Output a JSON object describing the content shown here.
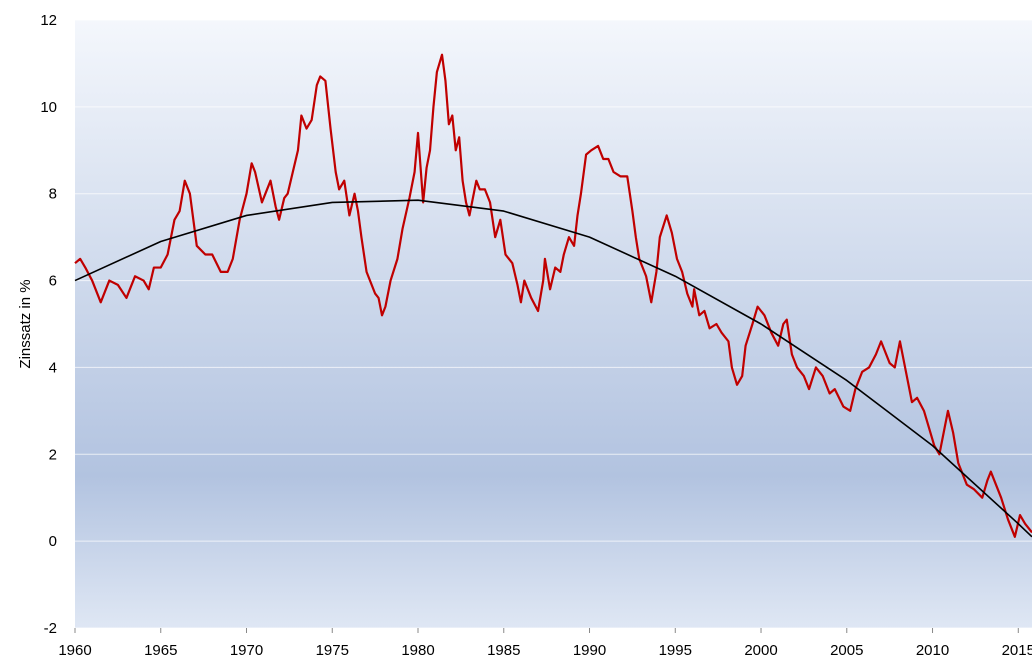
{
  "chart_data": {
    "type": "line",
    "y_label": "Zinssatz in %",
    "xlim": [
      1960,
      2015.8
    ],
    "ylim": [
      -2,
      12
    ],
    "xticks": [
      1960,
      1965,
      1970,
      1975,
      1980,
      1985,
      1990,
      1995,
      2000,
      2005,
      2010,
      2015
    ],
    "yticks": [
      -2,
      0,
      2,
      4,
      6,
      8,
      10,
      12
    ],
    "grid": true,
    "series": [
      {
        "color": "#c00000",
        "x": [
          1960,
          1960.3,
          1960.6,
          1961,
          1961.5,
          1962,
          1962.5,
          1963,
          1963.5,
          1964,
          1964.3,
          1964.6,
          1965,
          1965.4,
          1965.8,
          1966.1,
          1966.4,
          1966.7,
          1967.1,
          1967.6,
          1968.0,
          1968.5,
          1968.9,
          1969.2,
          1969.6,
          1970.0,
          1970.3,
          1970.5,
          1970.9,
          1971.1,
          1971.4,
          1971.7,
          1971.9,
          1972.2,
          1972.4,
          1972.7,
          1973.0,
          1973.2,
          1973.5,
          1973.8,
          1974.1,
          1974.3,
          1974.6,
          1974.9,
          1975.2,
          1975.4,
          1975.7,
          1976.0,
          1976.3,
          1976.5,
          1976.7,
          1977.0,
          1977.5,
          1977.7,
          1977.9,
          1978.1,
          1978.4,
          1978.8,
          1979.1,
          1979.5,
          1979.8,
          1980.0,
          1980.3,
          1980.5,
          1980.7,
          1980.9,
          1981.1,
          1981.4,
          1981.6,
          1981.8,
          1982.0,
          1982.2,
          1982.4,
          1982.6,
          1982.8,
          1983.0,
          1983.4,
          1983.6,
          1983.9,
          1984.2,
          1984.5,
          1984.8,
          1985.1,
          1985.5,
          1985.8,
          1986.0,
          1986.2,
          1986.6,
          1987.0,
          1987.3,
          1987.4,
          1987.7,
          1988.0,
          1988.3,
          1988.5,
          1988.8,
          1989.1,
          1989.3,
          1989.5,
          1989.8,
          1990.1,
          1990.5,
          1990.8,
          1991.1,
          1991.4,
          1991.8,
          1992.2,
          1992.5,
          1992.7,
          1992.9,
          1993.3,
          1993.6,
          1993.9,
          1994.1,
          1994.5,
          1994.8,
          1995.1,
          1995.4,
          1995.7,
          1996.0,
          1996.1,
          1996.4,
          1996.7,
          1997.0,
          1997.4,
          1997.7,
          1998.1,
          1998.3,
          1998.6,
          1998.9,
          1999.1,
          1999.5,
          1999.8,
          2000.2,
          2000.6,
          2001.0,
          2001.3,
          2001.5,
          2001.8,
          2002.1,
          2002.5,
          2002.8,
          2003.2,
          2003.6,
          2004.0,
          2004.3,
          2004.8,
          2005.2,
          2005.5,
          2005.9,
          2006.3,
          2006.7,
          2007.0,
          2007.5,
          2007.8,
          2008.1,
          2008.4,
          2008.8,
          2009.1,
          2009.5,
          2009.8,
          2010.1,
          2010.4,
          2010.7,
          2010.9,
          2011.2,
          2011.5,
          2011.7,
          2012.0,
          2012.4,
          2012.9,
          2013.2,
          2013.4,
          2013.7,
          2014.0,
          2014.4,
          2014.8,
          2015.1,
          2015.4,
          2015.8
        ],
        "values": [
          6.4,
          6.5,
          6.3,
          6.0,
          5.5,
          6.0,
          5.9,
          5.6,
          6.1,
          6.0,
          5.8,
          6.3,
          6.3,
          6.6,
          7.4,
          7.6,
          8.3,
          8.0,
          6.8,
          6.6,
          6.6,
          6.2,
          6.2,
          6.5,
          7.4,
          8.0,
          8.7,
          8.5,
          7.8,
          8.0,
          8.3,
          7.7,
          7.4,
          7.9,
          8.0,
          8.5,
          9.0,
          9.8,
          9.5,
          9.7,
          10.5,
          10.7,
          10.6,
          9.5,
          8.5,
          8.1,
          8.3,
          7.5,
          8.0,
          7.6,
          7.0,
          6.2,
          5.7,
          5.6,
          5.2,
          5.4,
          6.0,
          6.5,
          7.2,
          7.9,
          8.5,
          9.4,
          7.8,
          8.6,
          9.0,
          10.0,
          10.8,
          11.2,
          10.6,
          9.6,
          9.8,
          9.0,
          9.3,
          8.3,
          7.8,
          7.5,
          8.3,
          8.1,
          8.1,
          7.8,
          7.0,
          7.4,
          6.6,
          6.4,
          5.9,
          5.5,
          6.0,
          5.6,
          5.3,
          6.0,
          6.5,
          5.8,
          6.3,
          6.2,
          6.6,
          7.0,
          6.8,
          7.5,
          8.0,
          8.9,
          9.0,
          9.1,
          8.8,
          8.8,
          8.5,
          8.4,
          8.4,
          7.6,
          7.0,
          6.5,
          6.1,
          5.5,
          6.2,
          7.0,
          7.5,
          7.1,
          6.5,
          6.2,
          5.7,
          5.4,
          5.8,
          5.2,
          5.3,
          4.9,
          5.0,
          4.8,
          4.6,
          4.0,
          3.6,
          3.8,
          4.5,
          5.0,
          5.4,
          5.2,
          4.8,
          4.5,
          5.0,
          5.1,
          4.3,
          4.0,
          3.8,
          3.5,
          4.0,
          3.8,
          3.4,
          3.5,
          3.1,
          3.0,
          3.5,
          3.9,
          4.0,
          4.3,
          4.6,
          4.1,
          4.0,
          4.6,
          4.0,
          3.2,
          3.3,
          3.0,
          2.6,
          2.2,
          2.0,
          2.6,
          3.0,
          2.5,
          1.8,
          1.6,
          1.3,
          1.2,
          1.0,
          1.4,
          1.6,
          1.3,
          1.0,
          0.5,
          0.1,
          0.6,
          0.4,
          0.2
        ]
      },
      {
        "color": "#000000",
        "x": [
          1960,
          1965,
          1970,
          1975,
          1980,
          1985,
          1990,
          1995,
          2000,
          2005,
          2010,
          2015,
          2015.8
        ],
        "values": [
          6.0,
          6.9,
          7.5,
          7.8,
          7.85,
          7.6,
          7.0,
          6.1,
          5.0,
          3.7,
          2.2,
          0.4,
          0.1
        ]
      }
    ]
  }
}
